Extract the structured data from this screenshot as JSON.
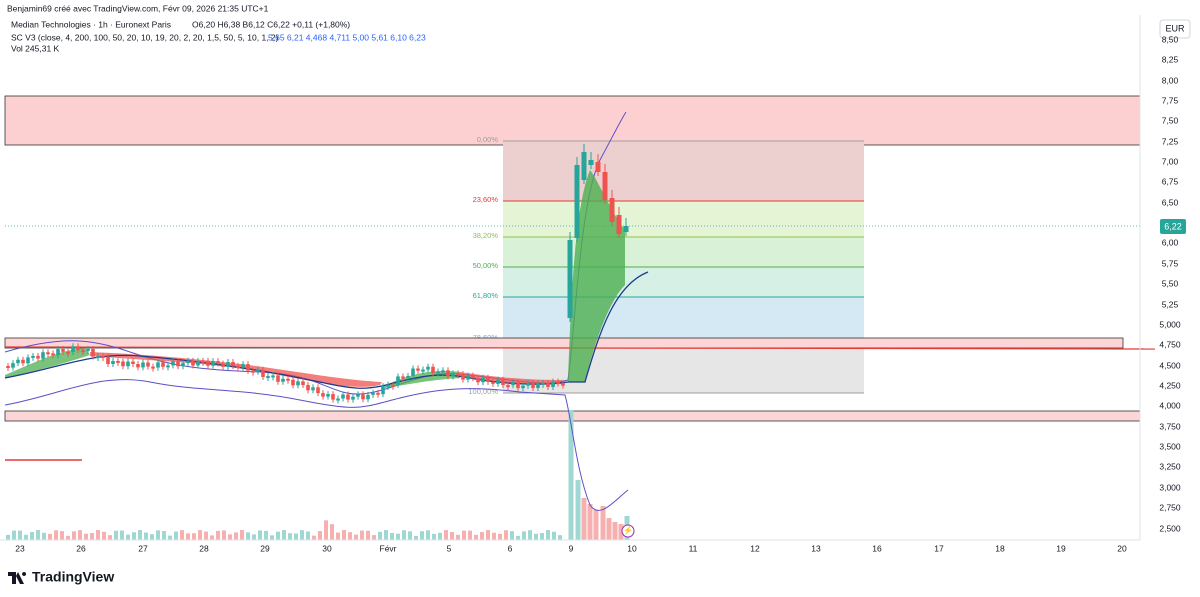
{
  "header": {
    "credit": "Benjamin69 créé avec TradingView.com, Févr 09, 2026 21:35 UTC+1",
    "symbol": "Median Technologies · 1h · Euronext Paris",
    "ohlc": "O6,20 H6,38 B6,12 C6,22 +0,11 (+1,80%)",
    "indicator": "SC V3 (close, 4, 200, 100, 50, 20, 10, 19, 20, 2, 20, 1,5, 50, 5, 10, 1, 2)",
    "indicator_values": "5,65 6,21 4,468 4,711 5,00 5,61 6,10 6,23",
    "volume": "Vol 245,31 K"
  },
  "price_axis": {
    "currency": "EUR",
    "last_price": "6,22",
    "labels": [
      "8,50",
      "8,25",
      "8,00",
      "7,75",
      "7,50",
      "7,25",
      "7,00",
      "6,75",
      "6,50",
      "6,00",
      "5,75",
      "5,50",
      "5,25",
      "5,000",
      "4,750",
      "4,500",
      "4,250",
      "4,000",
      "3,750",
      "3,500",
      "3,250",
      "3,000",
      "2,750",
      "2,500"
    ]
  },
  "time_axis": {
    "labels": [
      "23",
      "26",
      "27",
      "28",
      "29",
      "30",
      "Févr",
      "5",
      "6",
      "9",
      "10",
      "11",
      "12",
      "13",
      "16",
      "17",
      "18",
      "19",
      "20"
    ]
  },
  "fibonacci": {
    "levels": [
      "0,00%",
      "23,60%",
      "38,20%",
      "50,00%",
      "61,80%",
      "78,60%",
      "100,00%"
    ]
  },
  "logo": "TradingView"
}
